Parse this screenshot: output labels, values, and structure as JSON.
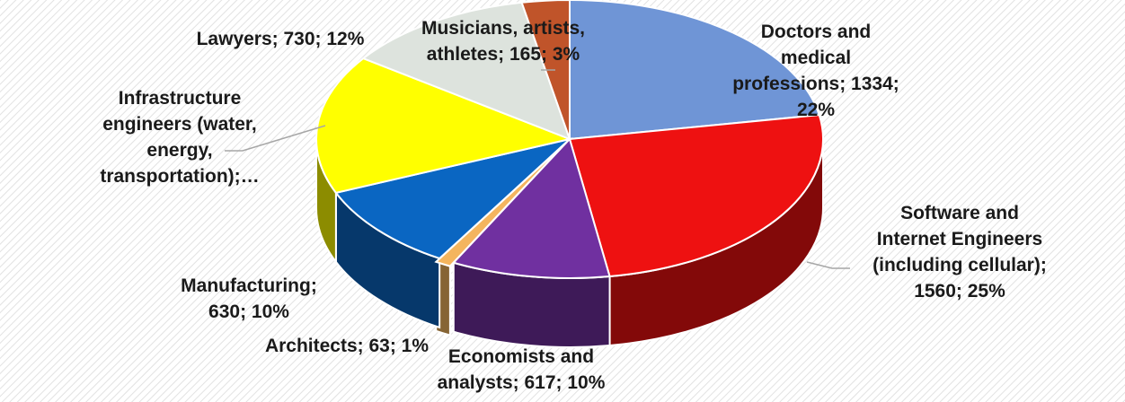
{
  "chart_data": {
    "type": "pie",
    "title": "",
    "slices": [
      {
        "lines": [
          "Doctors and",
          "medical",
          "professions; 1334;",
          "22%"
        ],
        "category": "Doctors and medical professions",
        "value": 1334,
        "percent": 22,
        "color": "#6f95d6"
      },
      {
        "lines": [
          "Software and",
          "Internet Engineers",
          "(including cellular);",
          "1560; 25%"
        ],
        "category": "Software and Internet Engineers (including cellular)",
        "value": 1560,
        "percent": 25,
        "color": "#ee1111"
      },
      {
        "lines": [
          "Economists and",
          "analysts; 617; 10%"
        ],
        "category": "Economists and analysts",
        "value": 617,
        "percent": 10,
        "color": "#7030a0"
      },
      {
        "lines": [
          "Architects; 63; 1%"
        ],
        "category": "Architects",
        "value": 63,
        "percent": 1,
        "color": "#f4b55e"
      },
      {
        "lines": [
          "Manufacturing;",
          "630; 10%"
        ],
        "category": "Manufacturing",
        "value": 630,
        "percent": 10,
        "color": "#0a66c2"
      },
      {
        "lines": [
          "Infrastructure",
          "engineers (water,",
          "energy,",
          "transportation);…"
        ],
        "category": "Infrastructure engineers (water, energy, transportation)",
        "percent": 16,
        "color": "#ffff00"
      },
      {
        "lines": [
          "Lawyers; 730; 12%"
        ],
        "category": "Lawyers",
        "value": 730,
        "percent": 12,
        "color": "#dde3dd"
      },
      {
        "lines": [
          "Musicians, artists,",
          "athletes; 165; 3%"
        ],
        "category": "Musicians, artists, athletes",
        "value": 165,
        "percent": 3,
        "color": "#c0542a"
      }
    ],
    "legend": "none"
  }
}
